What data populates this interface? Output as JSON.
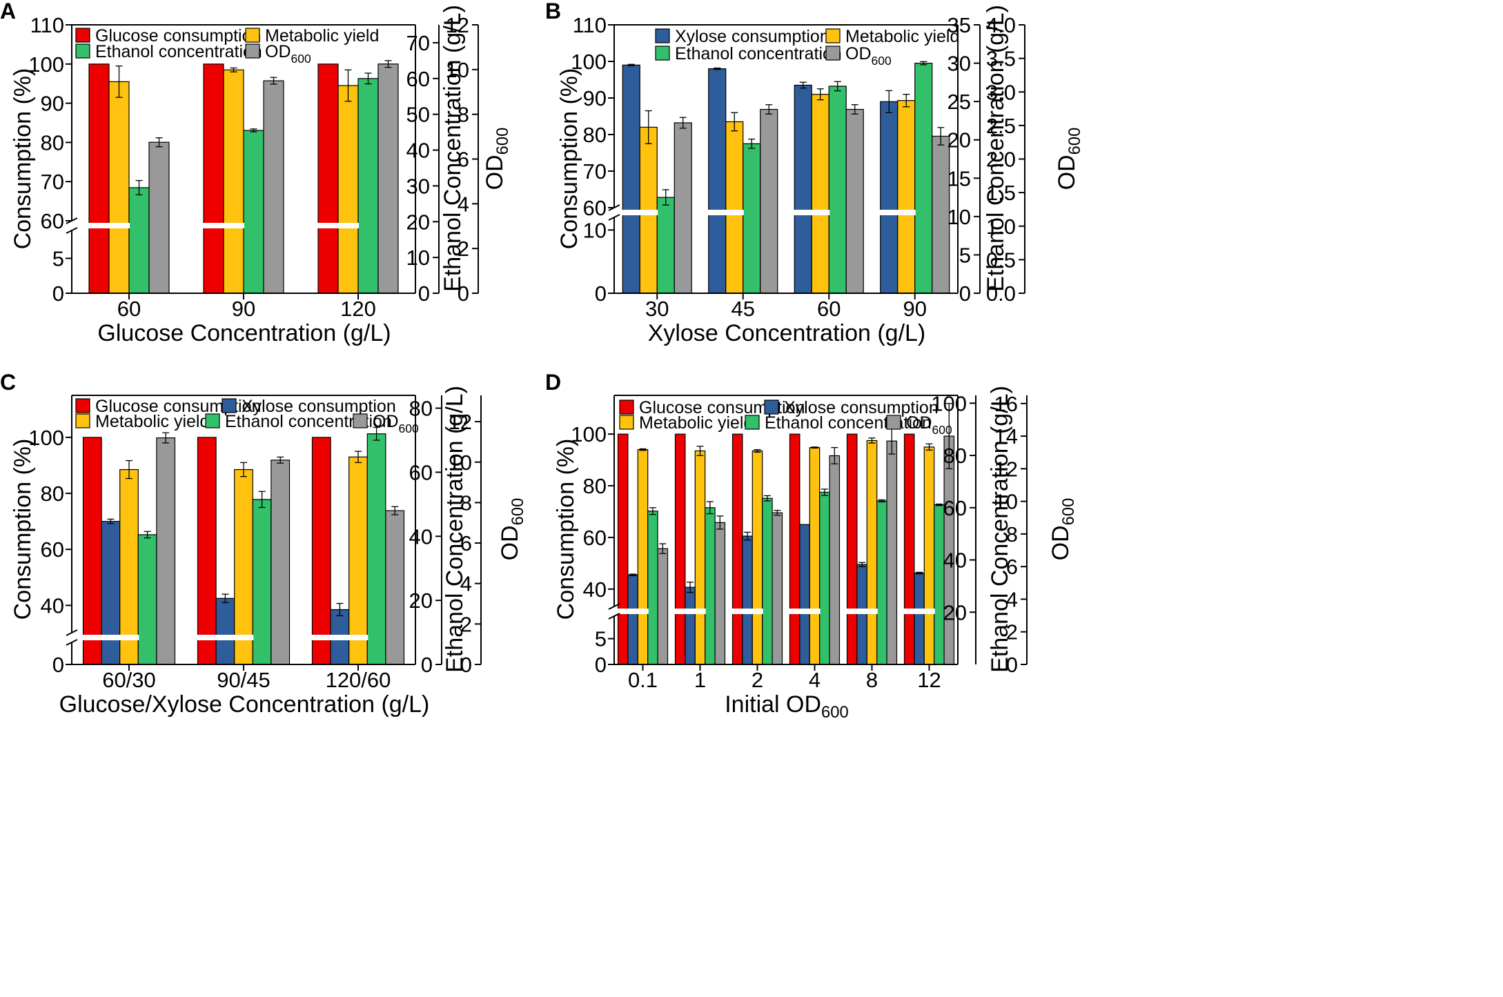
{
  "colors": {
    "glucose": "#ee0000",
    "xylose": "#2f5c9a",
    "yield": "#ffc20e",
    "ethanol": "#33c06a",
    "od": "#999999"
  },
  "chart_data": [
    {
      "id": "A",
      "type": "bar",
      "title": "",
      "xlabel": "Glucose Concentration (g/L)",
      "ylabel": "Consumption (%)",
      "y2label": "Ethanol Concentration (g/L)",
      "y3label": "OD",
      "y3label_sub": "600",
      "categories": [
        "60",
        "90",
        "120"
      ],
      "y_axis": {
        "upper": {
          "range": [
            60,
            110
          ],
          "ticks": [
            60,
            70,
            80,
            90,
            100,
            110
          ]
        },
        "lower": {
          "range": [
            0,
            9
          ],
          "ticks": [
            0,
            5
          ]
        },
        "break_labels": [
          0,
          5,
          60,
          70,
          80,
          90,
          100,
          110
        ]
      },
      "y2_axis": {
        "range": [
          0,
          75
        ],
        "ticks": [
          0,
          10,
          20,
          30,
          40,
          50,
          60,
          70
        ]
      },
      "y3_axis": {
        "range": [
          0,
          12
        ],
        "ticks": [
          0,
          2,
          4,
          6,
          8,
          10,
          12
        ]
      },
      "legend": [
        {
          "key": "glucose",
          "label": "Glucose consumption"
        },
        {
          "key": "yield",
          "label": "Metabolic yield"
        },
        {
          "key": "ethanol",
          "label": "Ethanol concentration"
        },
        {
          "key": "od",
          "label": "OD",
          "sub": "600"
        }
      ],
      "series": [
        {
          "name": "Glucose consumption",
          "key": "glucose",
          "axis": "y",
          "values": [
            100,
            100,
            100
          ],
          "errors": [
            0,
            0,
            0
          ]
        },
        {
          "name": "Metabolic yield",
          "key": "yield",
          "axis": "y",
          "values": [
            95.5,
            98.5,
            94.5
          ],
          "errors": [
            4,
            0.5,
            4
          ]
        },
        {
          "name": "Ethanol concentration",
          "key": "ethanol",
          "axis": "y2",
          "values": [
            29.5,
            45.5,
            60
          ],
          "errors": [
            2,
            0.4,
            1.5
          ]
        },
        {
          "name": "OD600",
          "key": "od",
          "axis": "y3",
          "values": [
            6.75,
            9.5,
            10.25
          ],
          "errors": [
            0.2,
            0.15,
            0.15
          ]
        }
      ]
    },
    {
      "id": "B",
      "type": "bar",
      "title": "",
      "xlabel": "Xylose Concentration (g/L)",
      "ylabel": "Consumption (%)",
      "y2label": "Ethanol Concentration (g/L)",
      "y3label": "OD",
      "y3label_sub": "600",
      "categories": [
        "30",
        "45",
        "60",
        "90"
      ],
      "y_axis": {
        "upper": {
          "range": [
            60,
            110
          ],
          "ticks": [
            60,
            70,
            80,
            90,
            100,
            110
          ]
        },
        "lower": {
          "range": [
            0,
            12
          ],
          "ticks": [
            0,
            10
          ]
        },
        "break_labels": [
          0,
          10,
          60,
          70,
          80,
          90,
          100,
          110
        ]
      },
      "y2_axis": {
        "range": [
          0,
          35
        ],
        "ticks": [
          0,
          5,
          10,
          15,
          20,
          25,
          30,
          35
        ]
      },
      "y3_axis": {
        "range": [
          0,
          4
        ],
        "ticks": [
          0.0,
          0.5,
          1.0,
          1.5,
          2.0,
          2.5,
          3.0,
          3.5,
          4.0
        ]
      },
      "y3_tick_labels": [
        "0.0",
        "0.5",
        "1.0",
        "1.5",
        "2.0",
        "2.5",
        "3.0",
        "3.5",
        "4.0"
      ],
      "legend": [
        {
          "key": "xylose",
          "label": "Xylose consumption"
        },
        {
          "key": "yield",
          "label": "Metabolic yield"
        },
        {
          "key": "ethanol",
          "label": "Ethanol concentration"
        },
        {
          "key": "od",
          "label": "OD",
          "sub": "600"
        }
      ],
      "series": [
        {
          "name": "Xylose consumption",
          "key": "xylose",
          "axis": "y",
          "values": [
            99,
            98,
            93.5,
            89
          ],
          "errors": [
            0.2,
            0.2,
            0.8,
            3
          ]
        },
        {
          "name": "Metabolic yield",
          "key": "yield",
          "axis": "y",
          "values": [
            82,
            83.5,
            91,
            89.3
          ],
          "errors": [
            4.5,
            2.5,
            1.5,
            1.7
          ]
        },
        {
          "name": "Ethanol concentration",
          "key": "ethanol",
          "axis": "y2",
          "values": [
            12.5,
            19.5,
            27,
            30
          ],
          "errors": [
            1,
            0.6,
            0.6,
            0.2
          ]
        },
        {
          "name": "OD600",
          "key": "od",
          "axis": "y3",
          "values": [
            2.54,
            2.74,
            2.74,
            2.34
          ],
          "errors": [
            0.08,
            0.07,
            0.07,
            0.13
          ]
        }
      ]
    },
    {
      "id": "C",
      "type": "bar",
      "title": "",
      "xlabel": "Glucose/Xylose Concentration (g/L)",
      "ylabel": "Consumption (%)",
      "y2label": "Ethanol Concentration (g/L)",
      "y3label": "OD",
      "y3label_sub": "600",
      "categories": [
        "60/30",
        "90/45",
        "120/60"
      ],
      "y_axis": {
        "upper": {
          "range": [
            30,
            115
          ],
          "ticks": [
            40,
            60,
            80,
            100
          ]
        },
        "lower": {
          "range": [
            0,
            3
          ],
          "ticks": [
            0
          ]
        },
        "break_labels": [
          0,
          40,
          60,
          80,
          100
        ]
      },
      "y2_axis": {
        "range": [
          0,
          84
        ],
        "ticks": [
          0,
          20,
          40,
          60,
          80
        ]
      },
      "y3_axis": {
        "range": [
          0,
          13.3
        ],
        "ticks": [
          0,
          2,
          4,
          6,
          8,
          10,
          12
        ]
      },
      "legend": [
        {
          "key": "glucose",
          "label": "Glucose consumption"
        },
        {
          "key": "xylose",
          "label": "Xylose consumption"
        },
        {
          "key": "yield",
          "label": "Metabolic yield"
        },
        {
          "key": "ethanol",
          "label": "Ethanol concentration"
        },
        {
          "key": "od",
          "label": "OD",
          "sub": "600"
        }
      ],
      "series": [
        {
          "name": "Glucose consumption",
          "key": "glucose",
          "axis": "y",
          "values": [
            100,
            100,
            100
          ],
          "errors": [
            0,
            0,
            0
          ]
        },
        {
          "name": "Xylose consumption",
          "key": "xylose",
          "axis": "y",
          "values": [
            70,
            42.5,
            38.5
          ],
          "errors": [
            0.8,
            1.5,
            2.2
          ]
        },
        {
          "name": "Metabolic yield",
          "key": "yield",
          "axis": "y",
          "values": [
            88.5,
            88.5,
            93
          ],
          "errors": [
            3.2,
            2.5,
            2
          ]
        },
        {
          "name": "Ethanol concentration",
          "key": "ethanol",
          "axis": "y2",
          "values": [
            40.5,
            51.5,
            72
          ],
          "errors": [
            1,
            2.5,
            2
          ]
        },
        {
          "name": "OD600",
          "key": "od",
          "axis": "y3",
          "values": [
            11.2,
            10.1,
            7.6
          ],
          "errors": [
            0.25,
            0.15,
            0.2
          ]
        }
      ]
    },
    {
      "id": "D",
      "type": "bar",
      "title": "",
      "xlabel": "Initial OD",
      "xlabel_sub": "600",
      "ylabel": "Consumption (%)",
      "y2label": "Ethanol Concentration (g/L)",
      "y3label": "OD",
      "y3label_sub": "600",
      "categories": [
        "0.1",
        "1",
        "2",
        "4",
        "8",
        "12"
      ],
      "y_axis": {
        "upper": {
          "range": [
            33,
            115
          ],
          "ticks": [
            40,
            60,
            80,
            100
          ]
        },
        "lower": {
          "range": [
            0,
            9.5
          ],
          "ticks": [
            0,
            5
          ]
        },
        "break_labels": [
          0,
          5,
          40,
          60,
          80,
          100
        ]
      },
      "y2_axis": {
        "range": [
          0,
          103
        ],
        "ticks": [
          20,
          40,
          60,
          80,
          100
        ]
      },
      "y3_axis": {
        "range": [
          0,
          16.5
        ],
        "ticks": [
          0,
          2,
          4,
          6,
          8,
          10,
          12,
          14,
          16
        ]
      },
      "legend": [
        {
          "key": "glucose",
          "label": "Glucose consumption"
        },
        {
          "key": "xylose",
          "label": "Xylose consumption"
        },
        {
          "key": "yield",
          "label": "Metabolic yield"
        },
        {
          "key": "ethanol",
          "label": "Ethanol concentration"
        },
        {
          "key": "od",
          "label": "OD",
          "sub": "600"
        }
      ],
      "series": [
        {
          "name": "Glucose consumption",
          "key": "glucose",
          "axis": "y",
          "values": [
            100,
            100,
            100,
            100,
            100,
            100
          ],
          "errors": [
            0,
            0,
            0,
            0,
            0,
            0
          ]
        },
        {
          "name": "Xylose consumption",
          "key": "xylose",
          "axis": "y",
          "values": [
            45.5,
            40.7,
            60.5,
            65,
            49.5,
            46.2
          ],
          "errors": [
            0.3,
            2,
            1.5,
            0,
            0.8,
            0.3
          ]
        },
        {
          "name": "Metabolic yield",
          "key": "yield",
          "axis": "y",
          "values": [
            94,
            93.5,
            93.5,
            94.8,
            97.5,
            95
          ],
          "errors": [
            0.3,
            1.8,
            0.5,
            0.2,
            1,
            1.2
          ]
        },
        {
          "name": "Ethanol concentration",
          "key": "ethanol",
          "axis": "y2",
          "values": [
            58.7,
            60,
            63.6,
            65.9,
            62.6,
            61.1
          ],
          "errors": [
            1.3,
            2.3,
            1,
            1.2,
            0.4,
            0.3
          ]
        },
        {
          "name": "OD600",
          "key": "od",
          "axis": "y3",
          "values": [
            7.1,
            8.7,
            9.3,
            12.8,
            13.7,
            14
          ],
          "errors": [
            0.3,
            0.4,
            0.15,
            0.5,
            0.8,
            2
          ]
        }
      ]
    }
  ]
}
